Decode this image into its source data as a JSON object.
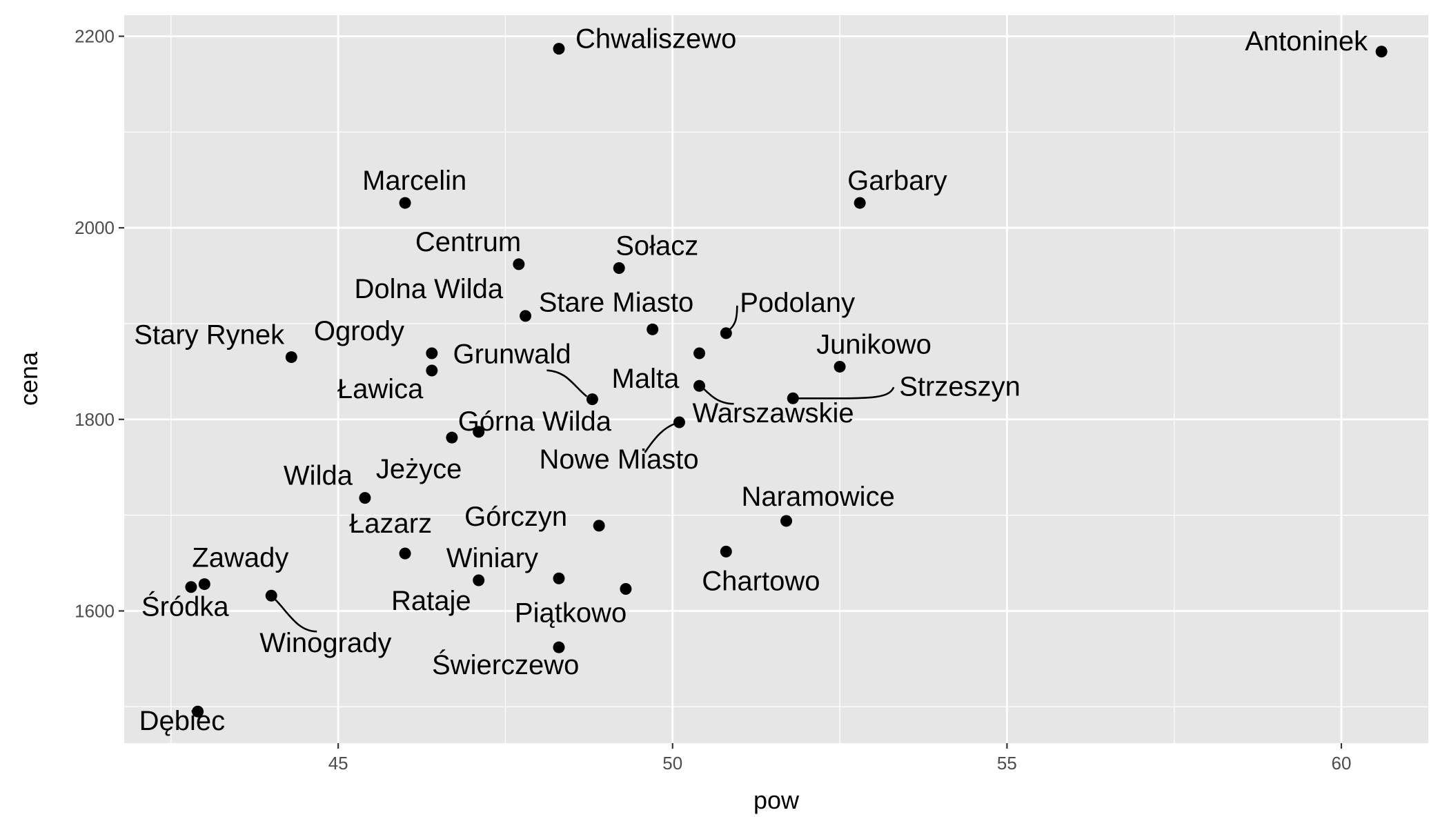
{
  "chart_data": {
    "type": "scatter",
    "xlabel": "pow",
    "ylabel": "cena",
    "xlim": [
      41.8,
      61.3
    ],
    "ylim": [
      1462,
      2222
    ],
    "x_ticks": [
      45,
      50,
      55,
      60
    ],
    "y_ticks": [
      1600,
      1800,
      2000,
      2200
    ],
    "grid": true,
    "colors": {
      "panel": "#e6e6e6",
      "grid": "#ffffff",
      "point": "#000000",
      "tick_text": "#4d4d4d"
    },
    "points": [
      {
        "label": "Chwaliszewo",
        "x": 48.3,
        "y": 2187
      },
      {
        "label": "Antoninek",
        "x": 60.6,
        "y": 2184
      },
      {
        "label": "Marcelin",
        "x": 46.0,
        "y": 2026
      },
      {
        "label": "Garbary",
        "x": 52.8,
        "y": 2026
      },
      {
        "label": "Centrum",
        "x": 47.7,
        "y": 1962
      },
      {
        "label": "Sołacz",
        "x": 49.2,
        "y": 1958
      },
      {
        "label": "Dolna Wilda",
        "x": 47.8,
        "y": 1908
      },
      {
        "label": "Stare Miasto",
        "x": 49.7,
        "y": 1894
      },
      {
        "label": "Podolany",
        "x": 50.8,
        "y": 1890
      },
      {
        "label": "Junikowo",
        "x": 52.5,
        "y": 1855
      },
      {
        "label": "Stary Rynek",
        "x": 44.3,
        "y": 1865
      },
      {
        "label": "Ogrody",
        "x": 46.4,
        "y": 1869
      },
      {
        "label": "Ławica",
        "x": 46.4,
        "y": 1851
      },
      {
        "label": "Grunwald",
        "x": 48.8,
        "y": 1821
      },
      {
        "label": "Malta",
        "x": 50.4,
        "y": 1869
      },
      {
        "label": "Strzeszyn",
        "x": 51.8,
        "y": 1822
      },
      {
        "label": "Warszawskie",
        "x": 50.4,
        "y": 1835
      },
      {
        "label": "Nowe Miasto",
        "x": 50.1,
        "y": 1797
      },
      {
        "label": "Górna Wilda",
        "x": 47.1,
        "y": 1787
      },
      {
        "label": "Jeżyce",
        "x": 46.7,
        "y": 1781
      },
      {
        "label": "Wilda",
        "x": 45.4,
        "y": 1718
      },
      {
        "label": "Naramowice",
        "x": 51.7,
        "y": 1694
      },
      {
        "label": "Górczyn",
        "x": 48.9,
        "y": 1689
      },
      {
        "label": "Łazarz",
        "x": 46.0,
        "y": 1660
      },
      {
        "label": "Chartowo",
        "x": 50.8,
        "y": 1662
      },
      {
        "label": "Winiary",
        "x": 47.1,
        "y": 1632
      },
      {
        "label": "Rataje",
        "x": 48.3,
        "y": 1634
      },
      {
        "label": "Piątkowo",
        "x": 49.3,
        "y": 1623
      },
      {
        "label": "Zawady",
        "x": 43.0,
        "y": 1628
      },
      {
        "label": "Śródka",
        "x": 42.8,
        "y": 1625
      },
      {
        "label": "Winogrady",
        "x": 44.0,
        "y": 1616
      },
      {
        "label": "Świerczewo",
        "x": 48.3,
        "y": 1562
      },
      {
        "label": "Dębiec",
        "x": 42.9,
        "y": 1495
      }
    ]
  }
}
